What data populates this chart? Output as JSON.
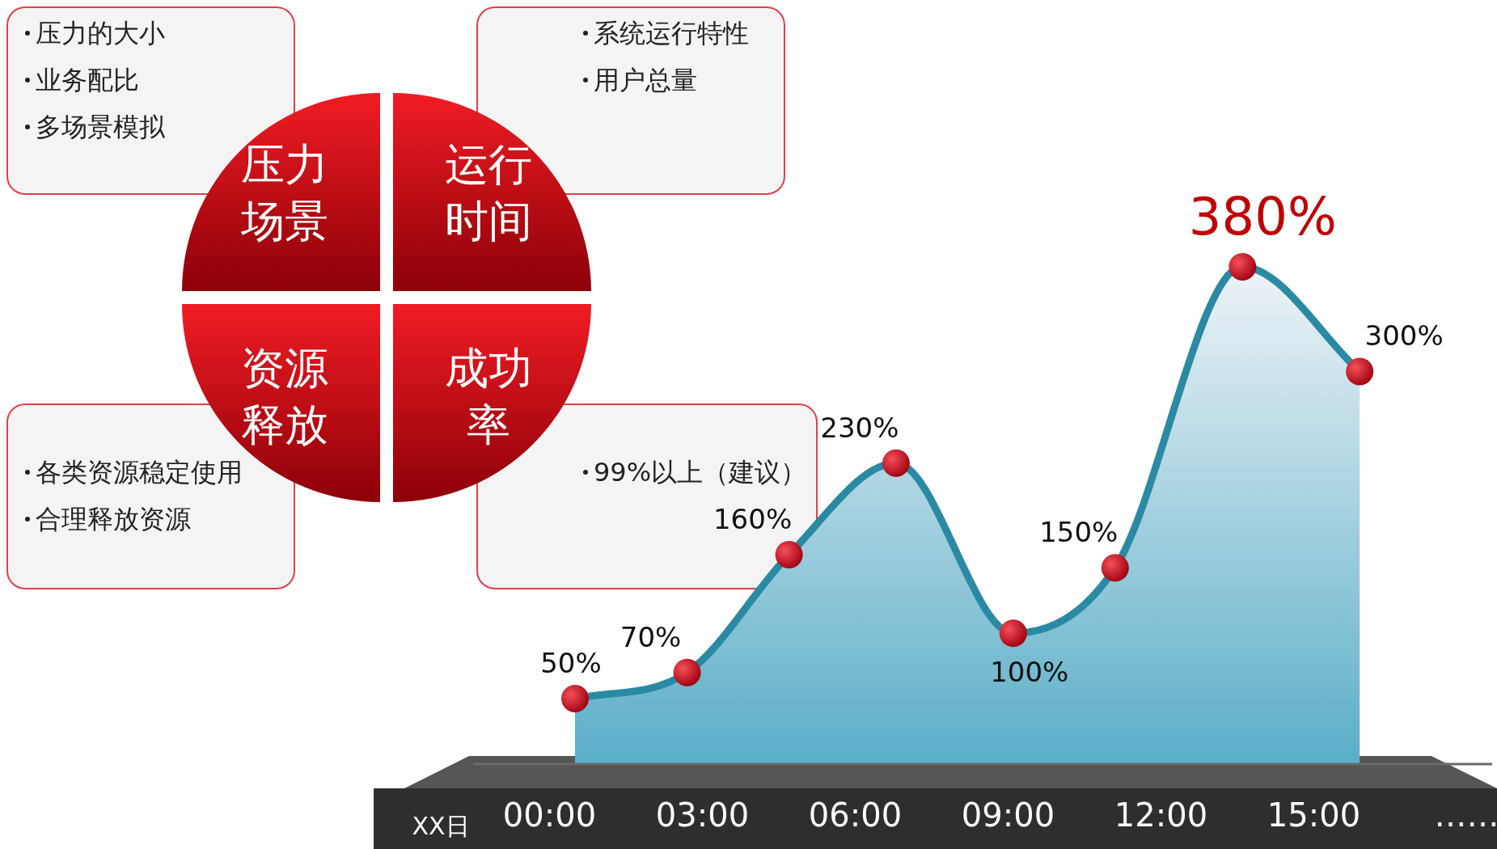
{
  "chart_data": [
    {
      "type": "pie",
      "categories": [
        "压力场景",
        "运行时间",
        "资源释放",
        "成功率"
      ],
      "values": [
        25,
        25,
        25,
        25
      ],
      "annotations": [
        "压力的大小",
        "业务配比",
        "多场景模拟",
        "系统运行特性",
        "用户总量",
        "各类资源稳定使用",
        "合理释放资源",
        "99%以上（建议）"
      ]
    },
    {
      "type": "area",
      "x": [
        0.5,
        2.7,
        4.7,
        6.8,
        9.1,
        11.1,
        13.6,
        15.9
      ],
      "values": [
        50,
        70,
        160,
        230,
        100,
        150,
        380,
        300
      ],
      "color": "#2a8aa3",
      "marker": "circle",
      "value_labels": [
        "50%",
        "70%",
        "160%",
        "230%",
        "100%",
        "150%",
        "380%",
        "300%"
      ],
      "xlim": [
        -1.5,
        18.5
      ],
      "xticks": [
        {
          "value": 0,
          "label": "00:00"
        },
        {
          "value": 3,
          "label": "03:00"
        },
        {
          "value": 6,
          "label": "06:00"
        },
        {
          "value": 9,
          "label": "09:00"
        },
        {
          "value": 12,
          "label": "12:00"
        },
        {
          "value": 15,
          "label": "15:00"
        },
        {
          "value": 18,
          "label": "……"
        }
      ],
      "xlabel": "XX日",
      "tick_labels": "x"
    }
  ]
}
